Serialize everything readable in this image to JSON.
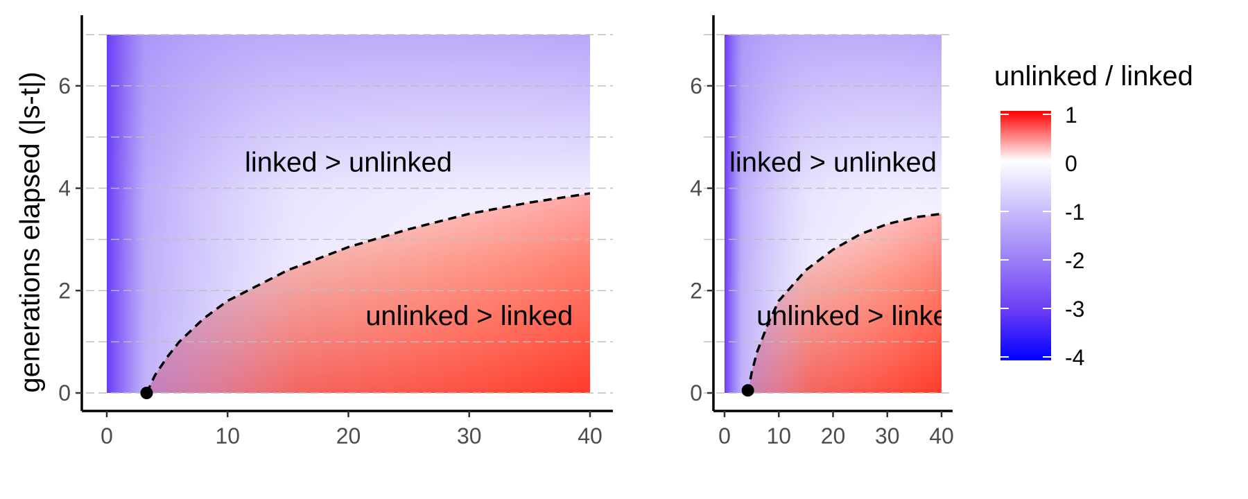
{
  "chart_data": [
    {
      "type": "heatmap",
      "panel": "left",
      "xlim": [
        0,
        40
      ],
      "ylim": [
        0,
        7
      ],
      "x_ticks": [
        0,
        10,
        20,
        30,
        40
      ],
      "y_ticks": [
        0,
        2,
        4,
        6
      ],
      "ylabel": "generations elapsed (|s-t|)",
      "grid": "horizontal dashed",
      "boundary_curve": {
        "style": "dashed",
        "points": [
          [
            3.3,
            0
          ],
          [
            4,
            0.35
          ],
          [
            5,
            0.7
          ],
          [
            6,
            1.0
          ],
          [
            8,
            1.45
          ],
          [
            10,
            1.8
          ],
          [
            15,
            2.4
          ],
          [
            20,
            2.85
          ],
          [
            25,
            3.2
          ],
          [
            30,
            3.5
          ],
          [
            35,
            3.72
          ],
          [
            40,
            3.9
          ]
        ]
      },
      "start_point": [
        3.3,
        0
      ],
      "annotations": [
        {
          "text": "linked > unlinked",
          "x": 20,
          "y": 4.5
        },
        {
          "text": "unlinked > linked",
          "x": 30,
          "y": 1.5
        }
      ]
    },
    {
      "type": "heatmap",
      "panel": "right",
      "xlim": [
        0,
        40
      ],
      "ylim": [
        0,
        7
      ],
      "x_ticks": [
        0,
        10,
        20,
        30,
        40
      ],
      "y_ticks": [
        0,
        2,
        4,
        6
      ],
      "grid": "horizontal dashed",
      "boundary_curve": {
        "style": "dashed",
        "points": [
          [
            4.3,
            0
          ],
          [
            5,
            0.4
          ],
          [
            6,
            0.8
          ],
          [
            8,
            1.35
          ],
          [
            10,
            1.8
          ],
          [
            15,
            2.4
          ],
          [
            20,
            2.8
          ],
          [
            25,
            3.1
          ],
          [
            30,
            3.3
          ],
          [
            35,
            3.43
          ],
          [
            40,
            3.5
          ]
        ]
      },
      "start_point": [
        4.3,
        0.05
      ],
      "annotations": [
        {
          "text": "linked > unlinked",
          "x": 20,
          "y": 4.5
        },
        {
          "text": "unlinked > linked",
          "x": 25,
          "y": 1.5
        }
      ]
    }
  ],
  "legend": {
    "title": "unlinked / linked",
    "ticks": [
      "1",
      "0",
      "-1",
      "-2",
      "-3",
      "-4"
    ],
    "range": [
      -4,
      1
    ],
    "colors": {
      "low": "#0000ff",
      "mid": "#ffffff",
      "high": "#ff0000"
    }
  }
}
